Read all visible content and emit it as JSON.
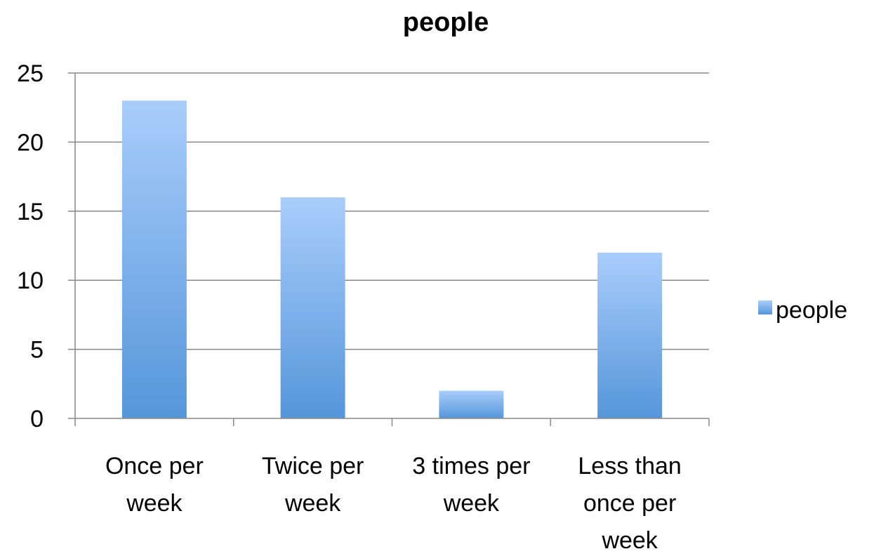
{
  "chart_data": {
    "type": "bar",
    "title": "people",
    "xlabel": "",
    "ylabel": "",
    "categories": [
      [
        "Once per",
        "week"
      ],
      [
        "Twice per",
        "week"
      ],
      [
        "3 times per",
        "week"
      ],
      [
        "Less than",
        "once per",
        "week"
      ]
    ],
    "series": [
      {
        "name": "people",
        "values": [
          23,
          16,
          2,
          12
        ]
      }
    ],
    "ylim": [
      0,
      25
    ],
    "yticks": [
      "0",
      "5",
      "10",
      "15",
      "20",
      "25"
    ],
    "grid": true,
    "legend_position": "right"
  },
  "colors": {
    "bar_top": "#a9cdfb",
    "bar_bottom": "#5596da",
    "gridline": "#888888",
    "axis": "#888888"
  }
}
